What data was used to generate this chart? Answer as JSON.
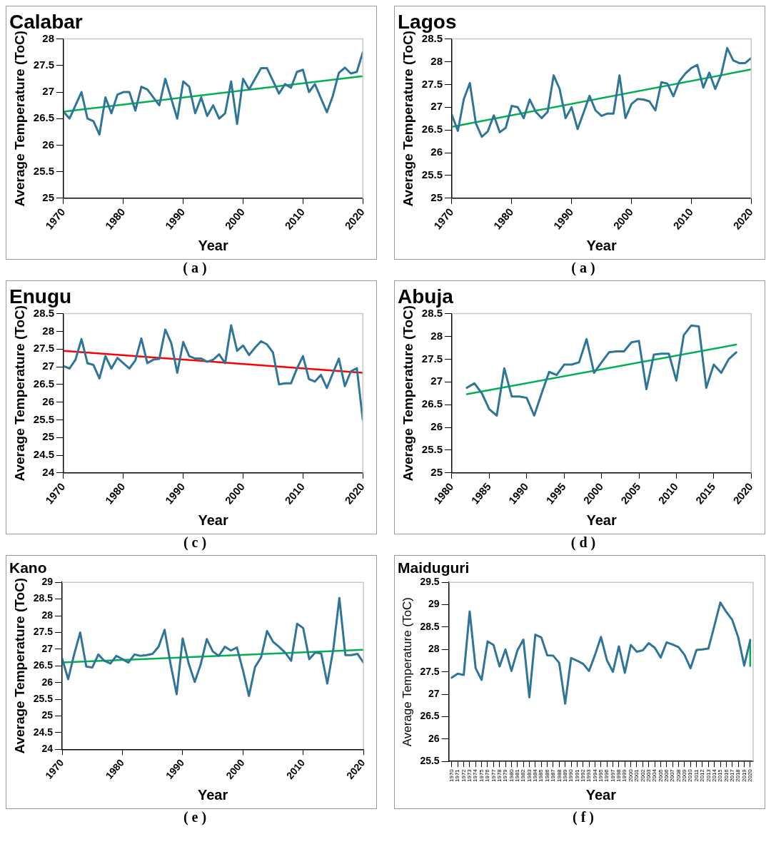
{
  "chart_data": [
    {
      "type": "line",
      "title": "Calabar",
      "xlabel": "Year",
      "ylabel": "Average Temperature (ToC)",
      "xlim": [
        1970,
        2020
      ],
      "xticks": [
        1970,
        1980,
        1990,
        2000,
        2010,
        2020
      ],
      "ylim": [
        25,
        28
      ],
      "yticks": [
        25,
        25.5,
        26,
        26.5,
        27,
        27.5,
        28
      ],
      "grid": false,
      "legend": false,
      "annotations": [
        "( a )"
      ],
      "series": [
        {
          "color": "#2e7598",
          "x": [
            1970,
            1971,
            1973,
            1974,
            1975,
            1976,
            1977,
            1978,
            1979,
            1980,
            1981,
            1982,
            1983,
            1984,
            1986,
            1987,
            1989,
            1990,
            1991,
            1992,
            1993,
            1994,
            1995,
            1996,
            1997,
            1998,
            1999,
            2000,
            2001,
            2003,
            2004,
            2006,
            2007,
            2008,
            2009,
            2010,
            2011,
            2012,
            2014,
            2015,
            2016,
            2017,
            2018,
            2019,
            2020
          ],
          "values": [
            26.63,
            26.5,
            27.0,
            26.5,
            26.45,
            26.2,
            26.9,
            26.6,
            26.95,
            27.0,
            27.0,
            26.65,
            27.1,
            27.05,
            26.75,
            27.25,
            26.5,
            27.2,
            27.1,
            26.6,
            26.9,
            26.55,
            26.75,
            26.5,
            26.6,
            27.2,
            26.4,
            27.25,
            27.05,
            27.45,
            27.45,
            26.97,
            27.15,
            27.08,
            27.38,
            27.42,
            27.0,
            27.15,
            26.62,
            26.93,
            27.36,
            27.46,
            27.35,
            27.38,
            27.75
          ]
        },
        {
          "type": "line",
          "color": "#00b050",
          "x": [
            1970,
            2020
          ],
          "values": [
            26.63,
            27.3
          ]
        }
      ]
    },
    {
      "type": "line",
      "title": "Lagos",
      "xlabel": "Year",
      "ylabel": "Average Temperature (ToC)",
      "xlim": [
        1970,
        2020
      ],
      "xticks": [
        1970,
        1980,
        1990,
        2000,
        2010,
        2020
      ],
      "ylim": [
        25,
        28.5
      ],
      "yticks": [
        25,
        25.5,
        26,
        26.5,
        27,
        27.5,
        28,
        28.5
      ],
      "grid": false,
      "legend": false,
      "annotations": [
        "( a )"
      ],
      "series": [
        {
          "color": "#2e7598",
          "x": [
            1970,
            1971,
            1972,
            1973,
            1974,
            1975,
            1976,
            1977,
            1978,
            1979,
            1980,
            1981,
            1982,
            1983,
            1984,
            1985,
            1986,
            1987,
            1988,
            1989,
            1990,
            1991,
            1992,
            1993,
            1994,
            1995,
            1996,
            1997,
            1998,
            1999,
            2000,
            2001,
            2002,
            2003,
            2004,
            2005,
            2006,
            2007,
            2008,
            2009,
            2010,
            2011,
            2012,
            2013,
            2014,
            2015,
            2016,
            2017,
            2018,
            2019,
            2020
          ],
          "values": [
            26.83,
            26.48,
            27.18,
            27.53,
            26.65,
            26.35,
            26.47,
            26.82,
            26.45,
            26.55,
            27.03,
            27.0,
            26.76,
            27.17,
            26.9,
            26.76,
            26.9,
            27.7,
            27.4,
            26.76,
            27.0,
            26.52,
            26.88,
            27.25,
            26.93,
            26.81,
            26.86,
            26.86,
            27.7,
            26.76,
            27.07,
            27.18,
            27.17,
            27.13,
            26.93,
            27.55,
            27.52,
            27.24,
            27.57,
            27.74,
            27.86,
            27.93,
            27.43,
            27.76,
            27.4,
            27.72,
            28.3,
            28.03,
            27.97,
            27.97,
            28.08
          ]
        },
        {
          "type": "line",
          "color": "#00b050",
          "x": [
            1970,
            2020
          ],
          "values": [
            26.57,
            27.83
          ]
        }
      ]
    },
    {
      "type": "line",
      "title": "Enugu",
      "xlabel": "Year",
      "ylabel": "Average Temperature (ToC)",
      "xlim": [
        1970,
        2020
      ],
      "xticks": [
        1970,
        1980,
        1990,
        2000,
        2010,
        2020
      ],
      "ylim": [
        24,
        28.5
      ],
      "yticks": [
        24,
        24.5,
        25,
        25.5,
        26,
        26.5,
        27,
        27.5,
        28,
        28.5
      ],
      "grid": false,
      "legend": false,
      "annotations": [
        "( c )"
      ],
      "series": [
        {
          "color": "#2e7598",
          "x": [
            1970,
            1971,
            1972,
            1973,
            1974,
            1975,
            1976,
            1977,
            1978,
            1979,
            1980,
            1981,
            1982,
            1983,
            1984,
            1985,
            1986,
            1987,
            1988,
            1989,
            1990,
            1991,
            1992,
            1993,
            1994,
            1995,
            1996,
            1997,
            1998,
            1999,
            2000,
            2001,
            2002,
            2003,
            2004,
            2005,
            2006,
            2007,
            2008,
            2009,
            2010,
            2011,
            2012,
            2013,
            2014,
            2015,
            2016,
            2017,
            2018,
            2019,
            2020
          ],
          "values": [
            27.02,
            26.95,
            27.2,
            27.78,
            27.1,
            27.05,
            26.67,
            27.3,
            26.95,
            27.25,
            27.1,
            26.95,
            27.18,
            27.8,
            27.1,
            27.2,
            27.22,
            28.05,
            27.67,
            26.83,
            27.7,
            27.3,
            27.23,
            27.23,
            27.14,
            27.2,
            27.35,
            27.1,
            28.17,
            27.45,
            27.6,
            27.33,
            27.54,
            27.72,
            27.63,
            27.4,
            26.5,
            26.53,
            26.53,
            26.95,
            27.3,
            26.65,
            26.58,
            26.77,
            26.4,
            26.82,
            27.23,
            26.45,
            26.87,
            26.96,
            25.5
          ]
        },
        {
          "type": "line",
          "color": "#ff0000",
          "x": [
            1970,
            2020
          ],
          "values": [
            27.45,
            26.83
          ]
        }
      ]
    },
    {
      "type": "line",
      "title": "Abuja",
      "xlabel": "Year",
      "ylabel": "Average Temperature (ToC)",
      "xlim": [
        1980,
        2020
      ],
      "xticks": [
        1980,
        1985,
        1990,
        1995,
        2000,
        2005,
        2010,
        2015,
        2020
      ],
      "ylim": [
        25,
        28.5
      ],
      "yticks": [
        25,
        25.5,
        26,
        26.5,
        27,
        27.5,
        28,
        28.5
      ],
      "grid": false,
      "legend": false,
      "annotations": [
        "( d )"
      ],
      "series": [
        {
          "color": "#2e7598",
          "x": [
            1982,
            1983,
            1984,
            1985,
            1986,
            1987,
            1988,
            1989,
            1990,
            1991,
            1992,
            1993,
            1994,
            1995,
            1996,
            1997,
            1998,
            1999,
            2000,
            2001,
            2002,
            2003,
            2004,
            2005,
            2006,
            2007,
            2008,
            2009,
            2010,
            2011,
            2012,
            2013,
            2014,
            2015,
            2016,
            2017,
            2018
          ],
          "values": [
            26.87,
            26.97,
            26.75,
            26.4,
            26.26,
            27.3,
            26.68,
            26.68,
            26.65,
            26.26,
            26.75,
            27.22,
            27.15,
            27.38,
            27.38,
            27.43,
            27.94,
            27.2,
            27.43,
            27.65,
            27.67,
            27.67,
            27.87,
            27.9,
            26.84,
            27.6,
            27.62,
            27.62,
            27.03,
            28.03,
            28.24,
            28.22,
            26.87,
            27.38,
            27.2,
            27.5,
            27.65
          ]
        },
        {
          "type": "line",
          "color": "#00b050",
          "x": [
            1982,
            2018
          ],
          "values": [
            26.73,
            27.82
          ]
        }
      ]
    },
    {
      "type": "line",
      "title": "Kano",
      "xlabel": "Year",
      "ylabel": "Average Temperature (ToC)",
      "xlim": [
        1970,
        2020
      ],
      "xticks": [
        1970,
        1980,
        1990,
        2000,
        2010,
        2020
      ],
      "ylim": [
        24,
        29
      ],
      "yticks": [
        24,
        24.5,
        25,
        25.5,
        26,
        26.5,
        27,
        27.5,
        28,
        28.5,
        29
      ],
      "grid": false,
      "legend": false,
      "annotations": [
        "( e )"
      ],
      "series": [
        {
          "color": "#2e7598",
          "x": [
            1970,
            1971,
            1972,
            1973,
            1974,
            1975,
            1976,
            1977,
            1978,
            1979,
            1980,
            1981,
            1982,
            1983,
            1984,
            1985,
            1986,
            1987,
            1988,
            1989,
            1990,
            1991,
            1992,
            1993,
            1994,
            1995,
            1996,
            1997,
            1998,
            1999,
            2000,
            2001,
            2002,
            2003,
            2004,
            2005,
            2006,
            2007,
            2008,
            2009,
            2010,
            2011,
            2012,
            2013,
            2014,
            2015,
            2016,
            2017,
            2018,
            2019,
            2020
          ],
          "values": [
            26.72,
            26.1,
            26.85,
            27.5,
            26.48,
            26.45,
            26.84,
            26.65,
            26.57,
            26.8,
            26.7,
            26.6,
            26.84,
            26.8,
            26.82,
            26.86,
            27.07,
            27.58,
            26.55,
            25.65,
            27.32,
            26.57,
            26.02,
            26.55,
            27.3,
            26.93,
            26.8,
            27.07,
            26.96,
            27.05,
            26.37,
            25.6,
            26.46,
            26.75,
            27.54,
            27.22,
            27.07,
            26.9,
            26.65,
            27.76,
            27.63,
            26.7,
            26.9,
            26.87,
            25.97,
            27.0,
            28.53,
            26.82,
            26.82,
            26.86,
            26.6
          ]
        },
        {
          "type": "line",
          "color": "#00b050",
          "x": [
            1970,
            2020
          ],
          "values": [
            26.6,
            26.98
          ]
        }
      ]
    },
    {
      "type": "line",
      "title": "Maiduguri",
      "xlabel": "Year",
      "ylabel": "Average Temperature (ToC)",
      "x": [
        1970,
        1971,
        1972,
        1973,
        1974,
        1975,
        1976,
        1977,
        1978,
        1979,
        1980,
        1981,
        1982,
        1983,
        1984,
        1985,
        1986,
        1987,
        1988,
        1989,
        1990,
        1991,
        1992,
        1993,
        1994,
        1995,
        1996,
        1997,
        1998,
        1999,
        2000,
        2001,
        2002,
        2003,
        2004,
        2005,
        2006,
        2007,
        2008,
        2009,
        2010,
        2011,
        2012,
        2013,
        2014,
        2015,
        2016,
        2017,
        2018,
        2019,
        2020
      ],
      "xlim": [
        1969.5,
        2020.5
      ],
      "xticks": [
        1970,
        1971,
        1972,
        1973,
        1974,
        1975,
        1976,
        1977,
        1978,
        1979,
        1980,
        1981,
        1982,
        1983,
        1984,
        1985,
        1986,
        1987,
        1988,
        1989,
        1990,
        1991,
        1992,
        1993,
        1994,
        1995,
        1996,
        1997,
        1998,
        1999,
        2000,
        2001,
        2002,
        2003,
        2004,
        2005,
        2006,
        2007,
        2008,
        2009,
        2010,
        2011,
        2012,
        2013,
        2014,
        2015,
        2016,
        2017,
        2018,
        2019,
        2020
      ],
      "ylim": [
        25.5,
        29.5
      ],
      "yticks": [
        25.5,
        26,
        26.5,
        27,
        27.5,
        28,
        28.5,
        29,
        29.5
      ],
      "grid": false,
      "legend": false,
      "annotations": [
        "( f )"
      ],
      "series": [
        {
          "color": "#2e7598",
          "values": [
            27.37,
            27.46,
            27.43,
            28.85,
            27.58,
            27.32,
            28.18,
            28.1,
            27.62,
            28.0,
            27.52,
            27.98,
            28.22,
            26.93,
            28.33,
            28.27,
            27.87,
            27.86,
            27.7,
            26.79,
            27.81,
            27.75,
            27.68,
            27.52,
            27.88,
            28.28,
            27.76,
            27.5,
            28.07,
            27.48,
            28.1,
            27.95,
            27.98,
            28.14,
            28.04,
            27.82,
            28.16,
            28.11,
            28.05,
            27.88,
            27.58,
            27.99,
            28.0,
            28.02,
            28.53,
            29.05,
            28.84,
            28.66,
            28.27,
            27.64,
            28.2
          ]
        },
        {
          "type": "line",
          "color": "#00b050",
          "x": [
            2020,
            2020
          ],
          "values": [
            27.63,
            28.22
          ]
        }
      ]
    }
  ]
}
